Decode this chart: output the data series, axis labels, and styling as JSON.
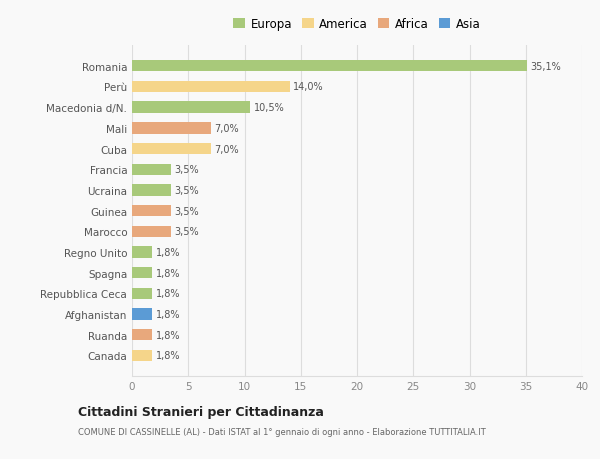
{
  "categories": [
    "Canada",
    "Ruanda",
    "Afghanistan",
    "Repubblica Ceca",
    "Spagna",
    "Regno Unito",
    "Marocco",
    "Guinea",
    "Ucraina",
    "Francia",
    "Cuba",
    "Mali",
    "Macedonia d/N.",
    "Perù",
    "Romania"
  ],
  "values": [
    1.8,
    1.8,
    1.8,
    1.8,
    1.8,
    1.8,
    3.5,
    3.5,
    3.5,
    3.5,
    7.0,
    7.0,
    10.5,
    14.0,
    35.1
  ],
  "labels": [
    "1,8%",
    "1,8%",
    "1,8%",
    "1,8%",
    "1,8%",
    "1,8%",
    "3,5%",
    "3,5%",
    "3,5%",
    "3,5%",
    "7,0%",
    "7,0%",
    "10,5%",
    "14,0%",
    "35,1%"
  ],
  "colors": [
    "#f5d58a",
    "#e8a87c",
    "#5b9bd5",
    "#a8c97a",
    "#a8c97a",
    "#a8c97a",
    "#e8a87c",
    "#e8a87c",
    "#a8c97a",
    "#a8c97a",
    "#f5d58a",
    "#e8a87c",
    "#a8c97a",
    "#f5d58a",
    "#a8c97a"
  ],
  "legend_labels": [
    "Europa",
    "America",
    "Africa",
    "Asia"
  ],
  "legend_colors": [
    "#a8c97a",
    "#f5d58a",
    "#e8a87c",
    "#5b9bd5"
  ],
  "xlim": [
    0,
    40
  ],
  "xticks": [
    0,
    5,
    10,
    15,
    20,
    25,
    30,
    35,
    40
  ],
  "title": "Cittadini Stranieri per Cittadinanza",
  "subtitle": "COMUNE DI CASSINELLE (AL) - Dati ISTAT al 1° gennaio di ogni anno - Elaborazione TUTTITALIA.IT",
  "bg_color": "#f9f9f9",
  "grid_color": "#dddddd",
  "bar_height": 0.55
}
